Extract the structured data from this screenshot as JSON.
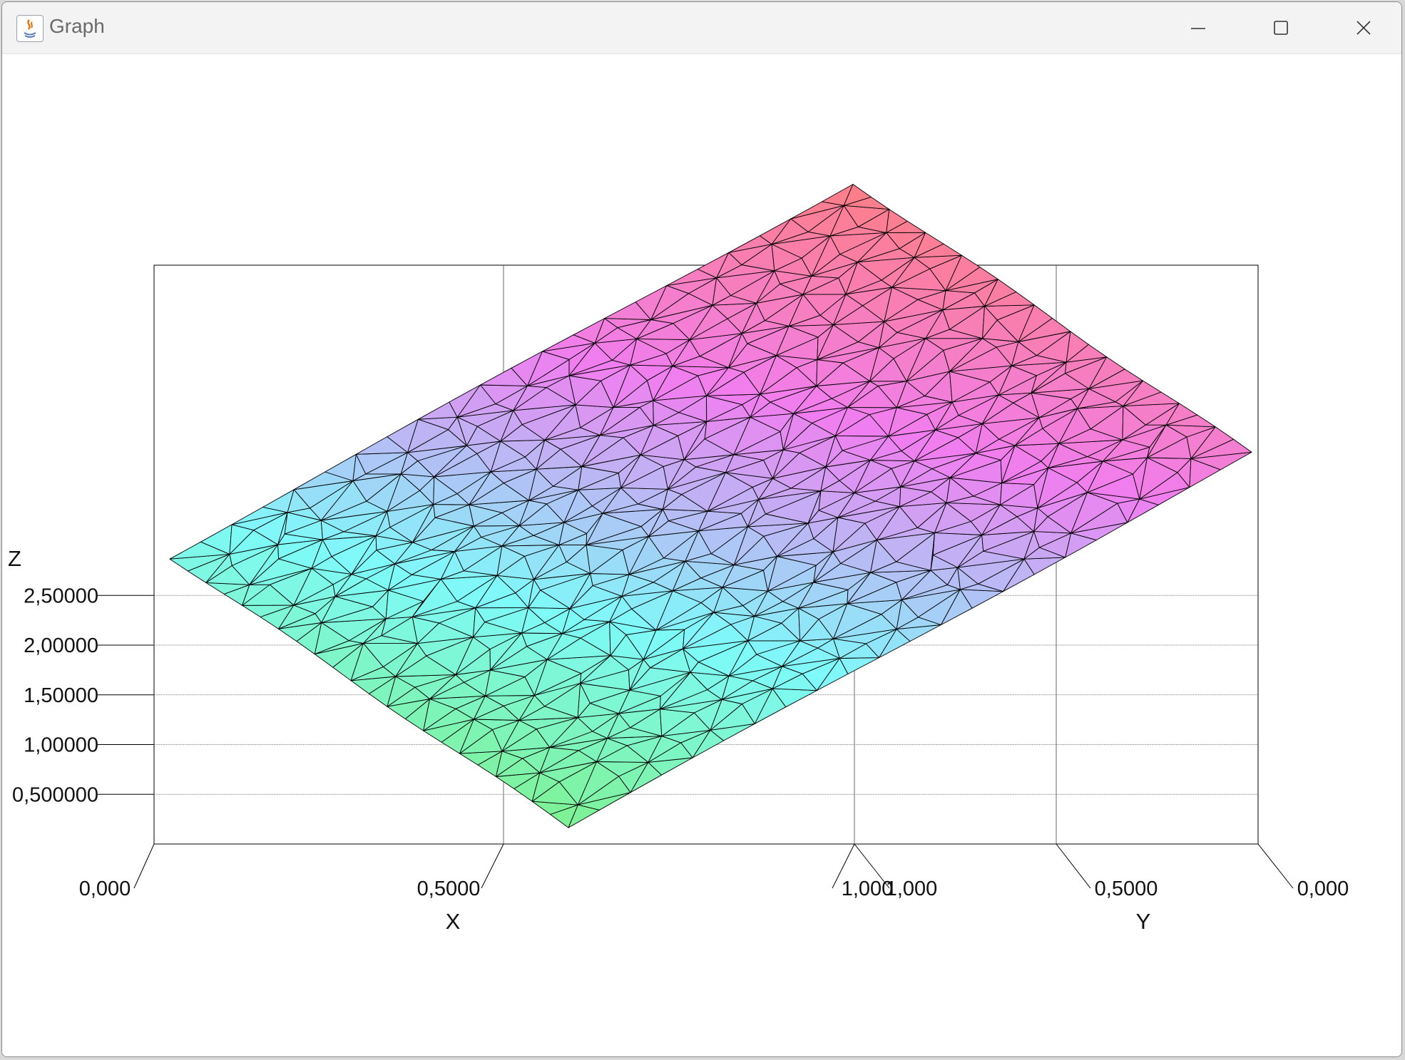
{
  "window": {
    "title": "Graph",
    "app_icon": "java-icon",
    "controls": [
      "minimize-icon",
      "maximize-icon",
      "close-icon"
    ]
  },
  "chart_data": {
    "type": "surface-3d",
    "x_axis": {
      "label": "X",
      "ticks": [
        "0,000",
        "0,5000",
        "1,000"
      ],
      "range": [
        0,
        1
      ]
    },
    "y_axis": {
      "label": "Y",
      "ticks": [
        "1,000",
        "0,5000",
        "0,000"
      ],
      "range": [
        0,
        1
      ]
    },
    "z_axis": {
      "label": "Z",
      "ticks": [
        "0,500000",
        "1,00000",
        "1,50000",
        "2,00000",
        "2,50000"
      ],
      "range": [
        0,
        2.9
      ]
    },
    "surface": {
      "function": "z = x + 2y (approx., triangulated mesh)",
      "mesh_color": "#000000"
    },
    "colormap": [
      "#7ef07e",
      "#7efafa",
      "#f07ef0",
      "#ff7e7e"
    ],
    "grid": true
  }
}
